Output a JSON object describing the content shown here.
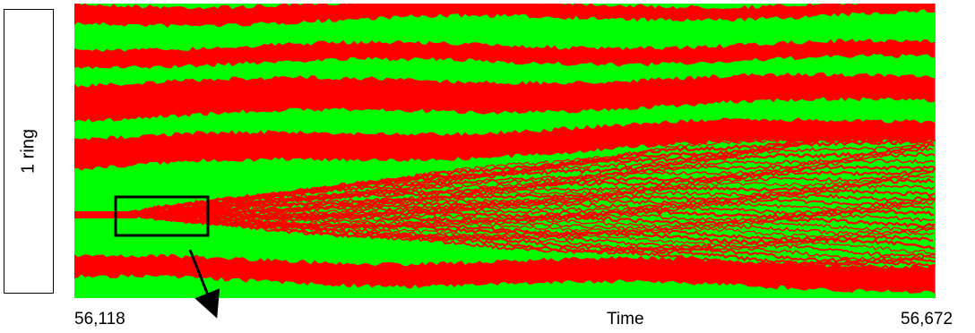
{
  "panel_label": "1 ring",
  "x_axis": {
    "start": "56,118",
    "label": "Time",
    "end": "56,672"
  },
  "colors": {
    "green": "#00ff00",
    "red": "#ff0000",
    "frame": "#000000"
  }
}
